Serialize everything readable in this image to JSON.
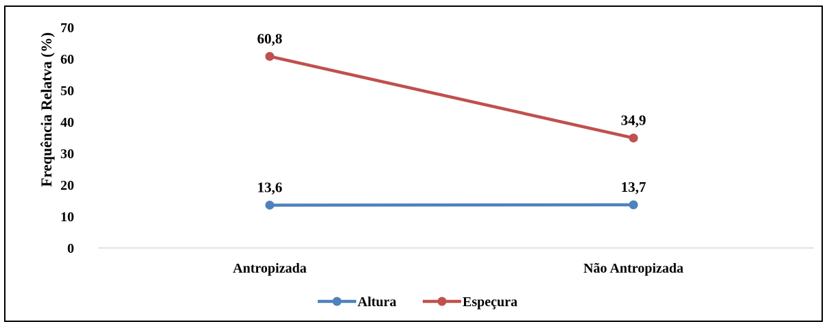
{
  "chart_data": {
    "type": "line",
    "title": "",
    "xlabel": "",
    "ylabel": "Frequência Relatva (%)",
    "categories": [
      "Antropizada",
      "Não Antropizada"
    ],
    "series": [
      {
        "name": "Altura",
        "values": [
          13.6,
          13.7
        ],
        "labels": [
          "13,6",
          "13,7"
        ],
        "color": "#4f81bd"
      },
      {
        "name": "Espeçura",
        "values": [
          60.8,
          34.9
        ],
        "labels": [
          "60,8",
          "34,9"
        ],
        "color": "#c0504d"
      }
    ],
    "ylim": [
      0,
      70
    ],
    "yticks": [
      0,
      10,
      20,
      30,
      40,
      50,
      60,
      70
    ],
    "grid": false,
    "legend": "bottom"
  }
}
